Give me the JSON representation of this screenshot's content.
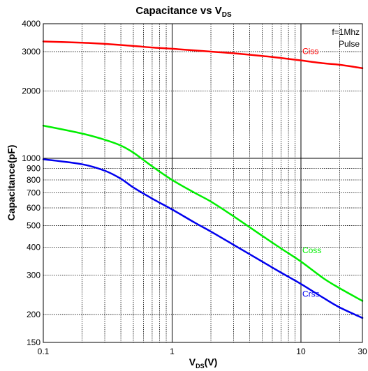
{
  "chart_data": {
    "type": "line",
    "title": "Capacitance vs V",
    "title_sub": "DS",
    "xlabel": "V",
    "xlabel_sub": "DS",
    "xlabel_suffix": "(V)",
    "ylabel": "Capacitance(pF)",
    "xscale": "log",
    "yscale": "log",
    "xlim": [
      0.1,
      30
    ],
    "ylim": [
      150,
      4000
    ],
    "grid": true,
    "x_tick_labels": [
      {
        "value": 0.1,
        "label": "0.1"
      },
      {
        "value": 1,
        "label": "1"
      },
      {
        "value": 10,
        "label": "10"
      },
      {
        "value": 30,
        "label": "30"
      }
    ],
    "y_tick_labels": [
      {
        "value": 150,
        "label": "150"
      },
      {
        "value": 200,
        "label": "200"
      },
      {
        "value": 300,
        "label": "300"
      },
      {
        "value": 400,
        "label": "400"
      },
      {
        "value": 500,
        "label": "500"
      },
      {
        "value": 600,
        "label": "600"
      },
      {
        "value": 700,
        "label": "700"
      },
      {
        "value": 800,
        "label": "800"
      },
      {
        "value": 900,
        "label": "900"
      },
      {
        "value": 1000,
        "label": "1000"
      },
      {
        "value": 2000,
        "label": "2000"
      },
      {
        "value": 3000,
        "label": "3000"
      },
      {
        "value": 4000,
        "label": "4000"
      }
    ],
    "annotations": [
      "f=1Mhz",
      "Pulse"
    ],
    "series": [
      {
        "name": "Ciss",
        "color": "#ff0000",
        "label_at": [
          10,
          2800
        ],
        "x": [
          0.1,
          0.2,
          0.3,
          0.5,
          0.7,
          1,
          2,
          3,
          5,
          7,
          10,
          15,
          20,
          30
        ],
        "y": [
          3330,
          3290,
          3250,
          3180,
          3130,
          3090,
          3000,
          2950,
          2870,
          2810,
          2740,
          2660,
          2620,
          2530
        ]
      },
      {
        "name": "Coss",
        "color": "#00ee00",
        "label_at": [
          10,
          360
        ],
        "x": [
          0.1,
          0.2,
          0.3,
          0.4,
          0.5,
          0.7,
          1,
          1.5,
          2,
          3,
          5,
          7,
          10,
          15,
          20,
          30
        ],
        "y": [
          1400,
          1290,
          1210,
          1140,
          1060,
          920,
          800,
          700,
          640,
          550,
          450,
          395,
          345,
          290,
          262,
          230
        ]
      },
      {
        "name": "Crss",
        "color": "#0000ee",
        "label_at": [
          10,
          230
        ],
        "x": [
          0.1,
          0.2,
          0.3,
          0.4,
          0.5,
          0.7,
          1,
          1.5,
          2,
          3,
          5,
          7,
          10,
          15,
          20,
          30
        ],
        "y": [
          990,
          940,
          880,
          810,
          740,
          660,
          590,
          515,
          470,
          410,
          345,
          308,
          274,
          237,
          215,
          193
        ]
      }
    ]
  }
}
